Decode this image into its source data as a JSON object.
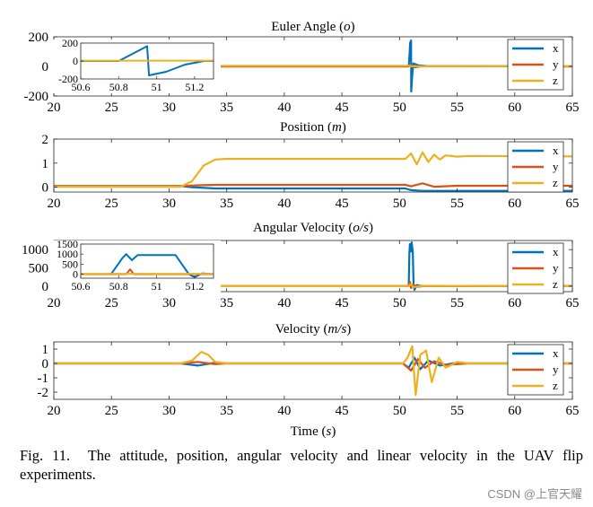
{
  "caption": {
    "label": "Fig. 11.",
    "text": "The attitude, position, angular velocity and linear velocity in the UAV flip experiments."
  },
  "watermark": "CSDN @上官天耀",
  "colors": {
    "x": "#0072BD",
    "y": "#D95319",
    "z": "#EDB120"
  },
  "chart_data": [
    {
      "type": "line",
      "title": "Euler Angle (o)",
      "xlabel": "",
      "ylabel": "",
      "xlim": [
        20,
        65
      ],
      "ylim": [
        -200,
        200
      ],
      "xticks": [
        20,
        25,
        30,
        35,
        40,
        45,
        50,
        55,
        60,
        65
      ],
      "yticks": [
        -200,
        0,
        200
      ],
      "legend": {
        "position": "right",
        "entries": [
          "x",
          "y",
          "z"
        ]
      },
      "series": [
        {
          "name": "x",
          "points": [
            [
              20,
              0
            ],
            [
              34,
              0
            ],
            [
              50.8,
              0
            ],
            [
              50.88,
              90
            ],
            [
              50.92,
              160
            ],
            [
              51,
              175
            ],
            [
              51.02,
              -170
            ],
            [
              51.1,
              -60
            ],
            [
              51.2,
              20
            ],
            [
              51.6,
              8
            ],
            [
              52.5,
              2
            ],
            [
              65,
              0
            ]
          ]
        },
        {
          "name": "y",
          "points": [
            [
              20,
              0
            ],
            [
              50.8,
              0
            ],
            [
              51,
              10
            ],
            [
              51.3,
              -6
            ],
            [
              52,
              2
            ],
            [
              65,
              0
            ]
          ]
        },
        {
          "name": "z",
          "points": [
            [
              20,
              -2
            ],
            [
              31,
              -2
            ],
            [
              33,
              3
            ],
            [
              34,
              4
            ],
            [
              50.8,
              4
            ],
            [
              51,
              1
            ],
            [
              65,
              1
            ]
          ]
        }
      ],
      "inset": {
        "xlim": [
          50.6,
          51.3
        ],
        "ylim": [
          -200,
          200
        ],
        "xticks": [
          50.6,
          50.8,
          51,
          51.2
        ],
        "yticks": [
          -200,
          0,
          200
        ],
        "series": [
          {
            "name": "x",
            "points": [
              [
                50.6,
                0
              ],
              [
                50.8,
                0
              ],
              [
                50.95,
                165
              ],
              [
                50.96,
                -160
              ],
              [
                51.05,
                -120
              ],
              [
                51.15,
                -40
              ],
              [
                51.25,
                0
              ],
              [
                51.3,
                0
              ]
            ]
          },
          {
            "name": "z",
            "points": [
              [
                50.6,
                4
              ],
              [
                51.3,
                4
              ]
            ]
          }
        ]
      }
    },
    {
      "type": "line",
      "title": "Position (m)",
      "xlabel": "",
      "ylabel": "",
      "xlim": [
        20,
        65
      ],
      "ylim": [
        -0.2,
        2
      ],
      "xticks": [
        20,
        25,
        30,
        35,
        40,
        45,
        50,
        55,
        60,
        65
      ],
      "yticks": [
        0,
        1,
        2
      ],
      "legend": {
        "position": "right",
        "entries": [
          "x",
          "y",
          "z"
        ]
      },
      "series": [
        {
          "name": "x",
          "points": [
            [
              20,
              0.05
            ],
            [
              31,
              0.05
            ],
            [
              32,
              0.0
            ],
            [
              34,
              -0.05
            ],
            [
              50.5,
              -0.05
            ],
            [
              51,
              -0.12
            ],
            [
              52,
              -0.15
            ],
            [
              65,
              -0.15
            ]
          ]
        },
        {
          "name": "y",
          "points": [
            [
              20,
              0.05
            ],
            [
              31,
              0.05
            ],
            [
              32.5,
              0.08
            ],
            [
              34,
              0.1
            ],
            [
              50.5,
              0.1
            ],
            [
              51,
              0.04
            ],
            [
              52,
              0.16
            ],
            [
              53,
              0.02
            ],
            [
              55,
              0.06
            ],
            [
              65,
              0.06
            ]
          ]
        },
        {
          "name": "z",
          "points": [
            [
              20,
              0.02
            ],
            [
              31,
              0.02
            ],
            [
              32,
              0.25
            ],
            [
              33,
              0.9
            ],
            [
              34,
              1.15
            ],
            [
              35,
              1.18
            ],
            [
              50.5,
              1.18
            ],
            [
              51,
              1.4
            ],
            [
              51.5,
              0.95
            ],
            [
              52,
              1.45
            ],
            [
              52.5,
              1.05
            ],
            [
              53,
              1.35
            ],
            [
              53.5,
              1.15
            ],
            [
              54,
              1.32
            ],
            [
              55,
              1.27
            ],
            [
              56,
              1.3
            ],
            [
              65,
              1.28
            ]
          ]
        }
      ]
    },
    {
      "type": "line",
      "title": "Angular Velocity (o/s)",
      "xlabel": "",
      "ylabel": "",
      "xlim": [
        20,
        65
      ],
      "ylim": [
        -150,
        1250
      ],
      "xticks": [
        20,
        25,
        30,
        35,
        40,
        45,
        50,
        55,
        60,
        65
      ],
      "yticks": [
        0,
        500,
        1000
      ],
      "legend": {
        "position": "right",
        "entries": [
          "x",
          "y",
          "z"
        ]
      },
      "series": [
        {
          "name": "x",
          "points": [
            [
              20,
              0
            ],
            [
              50.8,
              0
            ],
            [
              50.85,
              900
            ],
            [
              50.9,
              1150
            ],
            [
              51,
              950
            ],
            [
              51.05,
              1200
            ],
            [
              51.15,
              950
            ],
            [
              51.22,
              50
            ],
            [
              51.3,
              -100
            ],
            [
              51.5,
              30
            ],
            [
              52,
              0
            ],
            [
              65,
              0
            ]
          ]
        },
        {
          "name": "y",
          "points": [
            [
              20,
              0
            ],
            [
              50.8,
              0
            ],
            [
              50.9,
              120
            ],
            [
              51,
              -50
            ],
            [
              51.2,
              40
            ],
            [
              51.6,
              -20
            ],
            [
              52,
              0
            ],
            [
              65,
              0
            ]
          ]
        },
        {
          "name": "z",
          "points": [
            [
              20,
              0
            ],
            [
              50.8,
              0
            ],
            [
              51,
              60
            ],
            [
              51.2,
              -30
            ],
            [
              52,
              10
            ],
            [
              65,
              0
            ]
          ]
        }
      ],
      "inset": {
        "xlim": [
          50.6,
          51.3
        ],
        "ylim": [
          -200,
          1500
        ],
        "xticks": [
          50.6,
          50.8,
          51,
          51.2
        ],
        "yticks": [
          0,
          500,
          1000,
          1500
        ],
        "series": [
          {
            "name": "x",
            "points": [
              [
                50.6,
                0
              ],
              [
                50.76,
                0
              ],
              [
                50.82,
                800
              ],
              [
                50.84,
                1000
              ],
              [
                50.87,
                700
              ],
              [
                50.9,
                950
              ],
              [
                51.1,
                950
              ],
              [
                51.17,
                0
              ],
              [
                51.2,
                -150
              ],
              [
                51.24,
                40
              ],
              [
                51.3,
                0
              ]
            ]
          },
          {
            "name": "y",
            "points": [
              [
                50.6,
                0
              ],
              [
                50.84,
                0
              ],
              [
                50.86,
                240
              ],
              [
                50.88,
                0
              ],
              [
                51.3,
                0
              ]
            ]
          },
          {
            "name": "z",
            "points": [
              [
                50.6,
                20
              ],
              [
                51.3,
                20
              ]
            ]
          }
        ]
      }
    },
    {
      "type": "line",
      "title": "Velocity (m/s)",
      "xlabel": "Time (s)",
      "ylabel": "",
      "xlim": [
        20,
        65
      ],
      "ylim": [
        -2.5,
        1.5
      ],
      "xticks": [
        20,
        25,
        30,
        35,
        40,
        45,
        50,
        55,
        60,
        65
      ],
      "yticks": [
        -2,
        -1,
        0,
        1
      ],
      "legend": {
        "position": "right",
        "entries": [
          "x",
          "y",
          "z"
        ]
      },
      "series": [
        {
          "name": "x",
          "points": [
            [
              20,
              0
            ],
            [
              31,
              0
            ],
            [
              32.5,
              -0.15
            ],
            [
              34,
              0.05
            ],
            [
              35,
              0
            ],
            [
              50.3,
              0
            ],
            [
              50.8,
              -0.3
            ],
            [
              51.3,
              0.4
            ],
            [
              51.8,
              -0.4
            ],
            [
              52.5,
              0.2
            ],
            [
              53.5,
              -0.15
            ],
            [
              55,
              0.05
            ],
            [
              56,
              0
            ],
            [
              65,
              0
            ]
          ]
        },
        {
          "name": "y",
          "points": [
            [
              20,
              0
            ],
            [
              31,
              0
            ],
            [
              32.5,
              0.1
            ],
            [
              34,
              -0.05
            ],
            [
              35,
              0
            ],
            [
              50.3,
              0
            ],
            [
              51,
              -0.5
            ],
            [
              51.6,
              0.3
            ],
            [
              52.2,
              -0.3
            ],
            [
              53,
              0.15
            ],
            [
              54,
              -0.1
            ],
            [
              56,
              0
            ],
            [
              65,
              0
            ]
          ]
        },
        {
          "name": "z",
          "points": [
            [
              20,
              0
            ],
            [
              31,
              0
            ],
            [
              32,
              0.2
            ],
            [
              32.8,
              0.8
            ],
            [
              33.4,
              0.6
            ],
            [
              34,
              0.1
            ],
            [
              35,
              0
            ],
            [
              50.3,
              0
            ],
            [
              50.7,
              0.4
            ],
            [
              51.1,
              1.2
            ],
            [
              51.4,
              -2.2
            ],
            [
              51.8,
              0.6
            ],
            [
              52.3,
              0.9
            ],
            [
              52.8,
              -1.3
            ],
            [
              53.4,
              0.4
            ],
            [
              54,
              -0.3
            ],
            [
              55,
              0.1
            ],
            [
              56,
              0
            ],
            [
              65,
              0
            ]
          ]
        }
      ]
    }
  ]
}
